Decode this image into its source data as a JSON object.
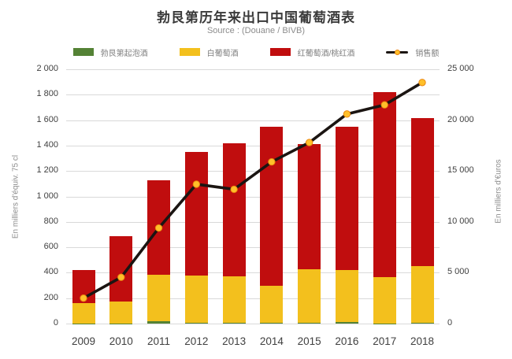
{
  "header": {
    "title": "勃艮第历年来出口中国葡萄酒表",
    "subtitle": "Source : (Douane / BIVB)"
  },
  "chart_data": {
    "type": "combo",
    "title": "勃艮第历年来出口中国葡萄酒表",
    "subtitle": "Source : (Douane / BIVB)",
    "categories": [
      "2009",
      "2010",
      "2011",
      "2012",
      "2013",
      "2014",
      "2015",
      "2016",
      "2017",
      "2018"
    ],
    "series": [
      {
        "name": "勃艮第起泡酒",
        "type": "bar",
        "axis": "left",
        "color": "#548235",
        "values": [
          3,
          3,
          20,
          5,
          5,
          8,
          5,
          10,
          3,
          5
        ]
      },
      {
        "name": "白葡萄酒",
        "type": "bar",
        "axis": "left",
        "color": "#f3c01d",
        "values": [
          155,
          170,
          365,
          370,
          365,
          290,
          425,
          410,
          360,
          450
        ]
      },
      {
        "name": "红葡萄酒/桃红酒",
        "type": "bar",
        "axis": "left",
        "color": "#c00d0e",
        "values": [
          262,
          517,
          745,
          975,
          1050,
          1252,
          980,
          1125,
          1457,
          1160
        ]
      },
      {
        "name": "销售额",
        "type": "line",
        "axis": "right",
        "color": "#1b1512",
        "marker_color": "#ffc02a",
        "marker_edge": "#ea850f",
        "values": [
          2500,
          4550,
          9400,
          13700,
          13200,
          15900,
          17800,
          20600,
          21500,
          23700
        ]
      }
    ],
    "bar_totals": [
      420,
      690,
      1130,
      1350,
      1420,
      1550,
      1410,
      1545,
      1820,
      1615
    ],
    "left_axis": {
      "label": "En milliers d'équiv. 75 cl",
      "min": 0,
      "max": 2000,
      "step": 200,
      "ticks": [
        {
          "value": 2000,
          "label": "2 000"
        },
        {
          "value": 1800,
          "label": "1 800"
        },
        {
          "value": 1600,
          "label": "1 600"
        },
        {
          "value": 1400,
          "label": "1 400"
        },
        {
          "value": 1200,
          "label": "1 200"
        },
        {
          "value": 1000,
          "label": "1 000"
        },
        {
          "value": 800,
          "label": "800"
        },
        {
          "value": 600,
          "label": "600"
        },
        {
          "value": 400,
          "label": "400"
        },
        {
          "value": 200,
          "label": "200"
        },
        {
          "value": 0,
          "label": "0"
        }
      ]
    },
    "right_axis": {
      "label": "En milliers d'€uros",
      "min": 0,
      "max": 25000,
      "step": 5000,
      "ticks": [
        {
          "value": 25000,
          "label": "25 000"
        },
        {
          "value": 20000,
          "label": "20 000"
        },
        {
          "value": 15000,
          "label": "15 000"
        },
        {
          "value": 10000,
          "label": "10 000"
        },
        {
          "value": 5000,
          "label": "5 000"
        },
        {
          "value": 0,
          "label": "0"
        }
      ]
    },
    "grid": true,
    "legend_position": "top",
    "colors": {
      "gridline": "#d9d9d9",
      "title_text": "#3a3a3a",
      "subtitle_text": "#8c8c8c",
      "tick_text": "#404040",
      "legend_text": "#7f7f7f",
      "background": "#ffffff"
    }
  }
}
